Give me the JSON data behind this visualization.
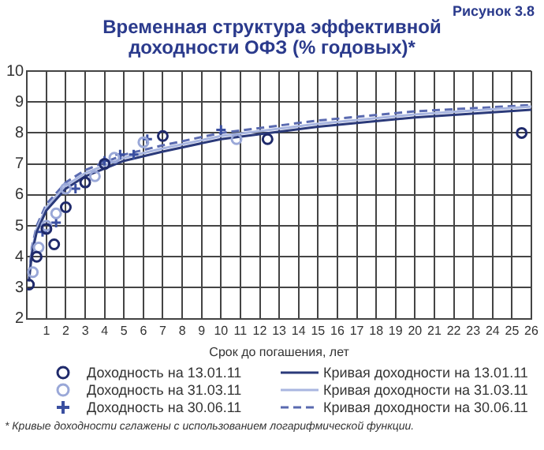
{
  "chart_data": {
    "type": "scatter",
    "title": "Временная структура эффективной доходности ОФЗ (% годовых)*",
    "xlabel": "Срок до погашения, лет",
    "annotations": [
      "Рисунок 3.8",
      "* Кривые доходности сглажены с использованием логарифмической функции."
    ],
    "xlim": [
      0,
      26
    ],
    "xticks": [
      1,
      2,
      3,
      4,
      5,
      6,
      7,
      8,
      9,
      10,
      11,
      12,
      13,
      14,
      15,
      16,
      17,
      18,
      19,
      20,
      21,
      22,
      23,
      24,
      25,
      26
    ],
    "ylim": [
      2,
      10
    ],
    "yticks": [
      2,
      3,
      4,
      5,
      6,
      7,
      8,
      9,
      10
    ],
    "grid": true,
    "legend": "bottom",
    "series": [
      {
        "name": "Доходность на 13.01.11",
        "type": "scatter",
        "marker": "circle",
        "color": "#1f2a6b",
        "x": [
          0.1,
          0.5,
          1,
          1.4,
          2,
          3,
          4,
          7,
          12.4,
          25.5
        ],
        "values": [
          3.1,
          4.0,
          4.9,
          4.4,
          5.6,
          6.4,
          7.0,
          7.9,
          7.8,
          8.0
        ]
      },
      {
        "name": "Доходность на 31.03.11",
        "type": "scatter",
        "marker": "circle",
        "color": "#9aa8d8",
        "x": [
          0.3,
          0.6,
          1,
          1.5,
          2,
          3.5,
          4.5,
          6,
          10.8
        ],
        "values": [
          3.5,
          4.3,
          5.0,
          5.4,
          6.2,
          6.6,
          7.2,
          7.7,
          7.8
        ]
      },
      {
        "name": "Доходность на 30.06.11",
        "type": "scatter",
        "marker": "cross",
        "color": "#3a4fa0",
        "x": [
          0.8,
          1.5,
          2.5,
          4,
          4.8,
          5.5,
          6.2,
          10
        ],
        "values": [
          4.8,
          5.1,
          6.2,
          7.1,
          7.3,
          7.3,
          7.8,
          8.1
        ]
      },
      {
        "name": "Кривая доходности на 13.01.11",
        "type": "line",
        "line_style": "solid",
        "color": "#2b3a7a",
        "x": [
          0.1,
          0.25,
          0.5,
          1,
          2,
          3,
          5,
          7,
          10,
          15,
          20,
          26
        ],
        "values": [
          3.2,
          4.1,
          4.8,
          5.5,
          6.2,
          6.6,
          7.1,
          7.4,
          7.8,
          8.2,
          8.5,
          8.75
        ]
      },
      {
        "name": "Кривая доходности на 31.03.11",
        "type": "line",
        "line_style": "solid",
        "color": "#a9b6e0",
        "x": [
          0.1,
          0.25,
          0.5,
          1,
          2,
          3,
          5,
          7,
          10,
          15,
          20,
          26
        ],
        "values": [
          3.3,
          4.2,
          4.9,
          5.6,
          6.3,
          6.7,
          7.2,
          7.5,
          7.9,
          8.3,
          8.6,
          8.85
        ]
      },
      {
        "name": "Кривая доходности на 30.06.11",
        "type": "line",
        "line_style": "dashed",
        "color": "#5a6ab0",
        "x": [
          0.1,
          0.25,
          0.5,
          1,
          2,
          3,
          5,
          7,
          10,
          15,
          20,
          26
        ],
        "values": [
          3.4,
          4.3,
          5.0,
          5.7,
          6.4,
          6.8,
          7.3,
          7.6,
          8.0,
          8.4,
          8.7,
          8.9
        ]
      }
    ]
  }
}
